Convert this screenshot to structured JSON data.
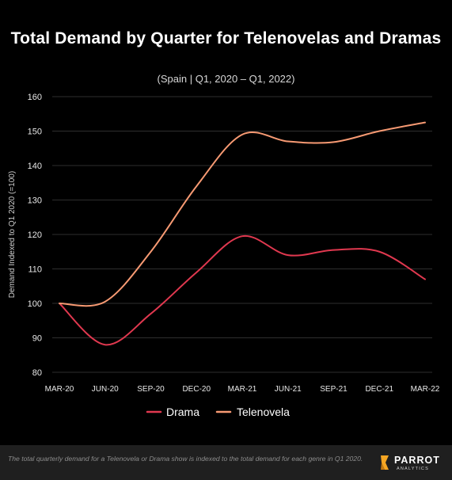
{
  "header": {
    "title": "Total Demand by Quarter for Telenovelas and Dramas",
    "subtitle": "(Spain  |  Q1, 2020 – Q1, 2022)"
  },
  "footer": {
    "note": "The total quarterly demand for a Telenovela or Drama show is indexed to the total demand for each genre in Q1 2020.",
    "logo_name": "PARROT",
    "logo_sub": "ANALYTICS"
  },
  "colors": {
    "background": "#000000",
    "drama": "#e0384f",
    "telenovela": "#f79a73",
    "grid": "#2e2e2e",
    "axis_text": "#e8e8e8"
  },
  "chart_data": {
    "type": "line",
    "title": "Total Demand by Quarter for Telenovelas and Dramas",
    "subtitle": "(Spain  |  Q1, 2020 – Q1, 2022)",
    "xlabel": "",
    "ylabel": "Demand Indexed to Q1 2020 (=100)",
    "categories": [
      "MAR-20",
      "JUN-20",
      "SEP-20",
      "DEC-20",
      "MAR-21",
      "JUN-21",
      "SEP-21",
      "DEC-21",
      "MAR-22"
    ],
    "ylim": [
      80,
      160
    ],
    "yticks": [
      80,
      90,
      100,
      110,
      120,
      130,
      140,
      150,
      160
    ],
    "grid": true,
    "legend_position": "bottom",
    "series": [
      {
        "name": "Drama",
        "color": "#e0384f",
        "values": [
          100,
          88,
          97,
          109,
          119.5,
          114,
          115.5,
          115,
          107
        ]
      },
      {
        "name": "Telenovela",
        "color": "#f79a73",
        "values": [
          100,
          100.5,
          115,
          134,
          149,
          147,
          146.8,
          150,
          152.5
        ]
      }
    ]
  }
}
